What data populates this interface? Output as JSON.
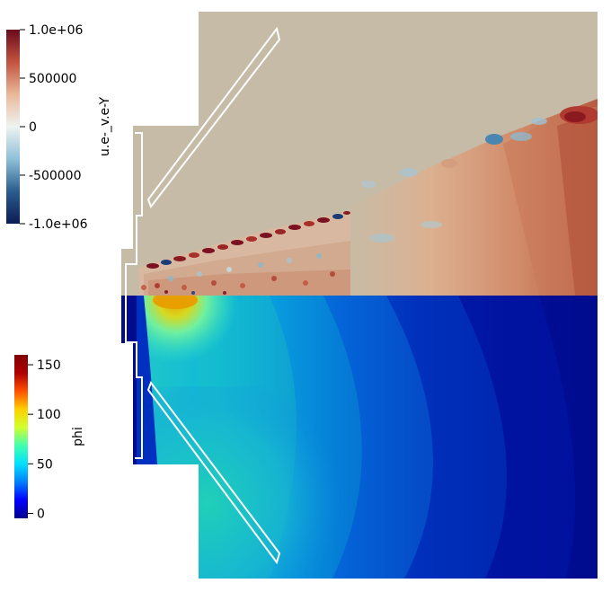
{
  "top_colorbar": {
    "title": "u.e-_v.e-Y",
    "ticks": [
      "1.0e+06",
      "500000",
      "0",
      "-500000",
      "-1.0e+06"
    ],
    "tick_values": [
      1000000,
      500000,
      0,
      -500000,
      -1000000
    ],
    "range": [
      -1000000,
      1000000
    ],
    "colors": [
      "#0b1b55",
      "#2b5d8e",
      "#8ec0d8",
      "#eef3f1",
      "#eab89a",
      "#c2533e",
      "#6a0a1d"
    ]
  },
  "bottom_colorbar": {
    "title": "phi",
    "ticks": [
      "150",
      "100",
      "50",
      "0"
    ],
    "tick_values": [
      150,
      100,
      50,
      0
    ],
    "range": [
      -5,
      160
    ],
    "colors": [
      "#00008c",
      "#0000ff",
      "#0080ff",
      "#00e0ff",
      "#40ffb0",
      "#d0ff30",
      "#ffd000",
      "#ff5000",
      "#b00000",
      "#7f0000"
    ]
  },
  "domain_colors": {
    "background_tan": "#c6bba6",
    "field_dark_blue": "#000b8e",
    "electrode_outline": "#ffffff"
  }
}
